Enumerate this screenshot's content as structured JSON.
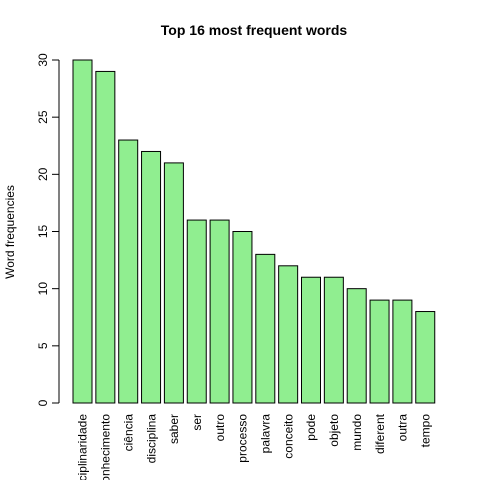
{
  "chart_data": {
    "type": "bar",
    "title": "Top 16 most frequent words",
    "xlabel": "",
    "ylabel": "Word frequencies",
    "ylim": [
      0,
      30
    ],
    "yticks": [
      0,
      5,
      10,
      15,
      20,
      25,
      30
    ],
    "categories": [
      "disciplinaridade",
      "conhecimento",
      "ciência",
      "disciplina",
      "saber",
      "ser",
      "outro",
      "processo",
      "palavra",
      "conceito",
      "pode",
      "objeto",
      "mundo",
      "diferent",
      "outra",
      "tempo"
    ],
    "values": [
      30,
      29,
      23,
      22,
      21,
      16,
      16,
      15,
      13,
      12,
      11,
      11,
      10,
      9,
      9,
      8
    ],
    "colors": {
      "bar_fill": "#90ee90",
      "bar_stroke": "#000000"
    },
    "grid": false
  }
}
